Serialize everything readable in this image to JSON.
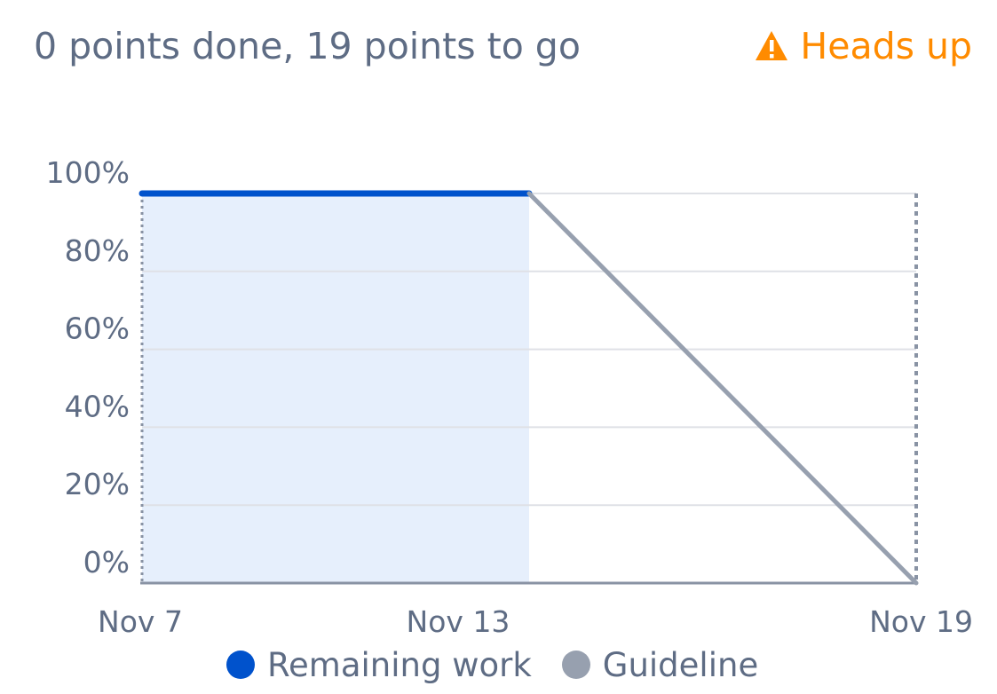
{
  "header": {
    "summary": "0 points done, 19 points to go",
    "warning_label": "Heads up",
    "warning_icon": "warning-triangle-icon",
    "warning_color": "#ff8b00"
  },
  "chart_data": {
    "type": "line",
    "x_labels": [
      "Nov 7",
      "Nov 13",
      "Nov 19"
    ],
    "x_ticks": [
      "Nov 7",
      "Nov 13",
      "Nov 19"
    ],
    "y_ticks": [
      "100%",
      "80%",
      "60%",
      "40%",
      "20%",
      "0%"
    ],
    "ylim": [
      0,
      100
    ],
    "grid": true,
    "series": [
      {
        "name": "Remaining work",
        "color": "#0052cc",
        "fill": "#e6effc",
        "points": [
          [
            "Nov 7",
            100
          ],
          [
            "Nov 13",
            100
          ]
        ]
      },
      {
        "name": "Guideline",
        "color": "#97a0af",
        "points": [
          [
            "Nov 13",
            100
          ],
          [
            "Nov 19",
            0
          ]
        ]
      }
    ],
    "legend_position": "bottom"
  }
}
